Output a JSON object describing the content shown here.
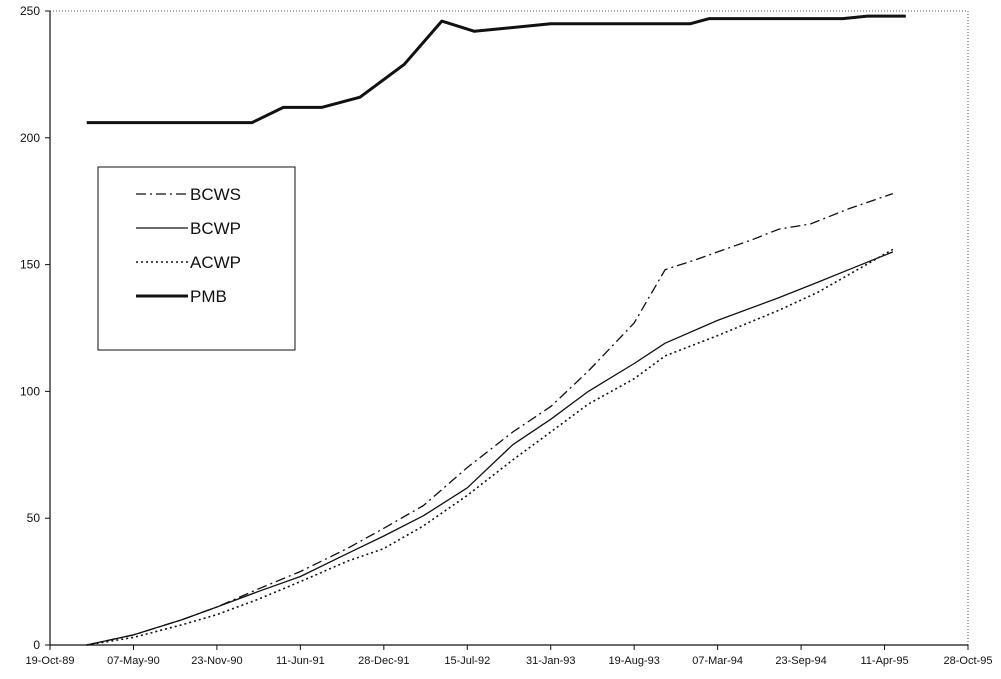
{
  "chart_data": {
    "type": "line",
    "xlabel": "",
    "ylabel": "",
    "x_tick_labels": [
      "19-Oct-89",
      "07-May-90",
      "23-Nov-90",
      "11-Jun-91",
      "28-Dec-91",
      "15-Jul-92",
      "31-Jan-93",
      "19-Aug-93",
      "07-Mar-94",
      "23-Sep-94",
      "11-Apr-95",
      "28-Oct-95"
    ],
    "x_range": [
      "1989-10-19",
      "1995-10-28"
    ],
    "y_ticks": [
      0,
      50,
      100,
      150,
      200,
      250
    ],
    "ylim": [
      0,
      250
    ],
    "grid": false,
    "legend_position": "upper-left",
    "series": [
      {
        "name": "BCWS",
        "style": "dash-dot",
        "points": [
          [
            "1990-01-15",
            0
          ],
          [
            "1990-05-07",
            4
          ],
          [
            "1990-09-01",
            10
          ],
          [
            "1990-11-23",
            15
          ],
          [
            "1991-03-01",
            22
          ],
          [
            "1991-06-11",
            29
          ],
          [
            "1991-10-01",
            38
          ],
          [
            "1991-12-28",
            46
          ],
          [
            "1992-04-01",
            55
          ],
          [
            "1992-07-15",
            70
          ],
          [
            "1992-11-01",
            84
          ],
          [
            "1993-01-31",
            94
          ],
          [
            "1993-05-01",
            108
          ],
          [
            "1993-08-19",
            127
          ],
          [
            "1993-11-01",
            148
          ],
          [
            "1994-01-15",
            152
          ],
          [
            "1994-03-07",
            155
          ],
          [
            "1994-06-01",
            160
          ],
          [
            "1994-08-01",
            164
          ],
          [
            "1994-10-15",
            166
          ],
          [
            "1995-01-15",
            172
          ],
          [
            "1995-05-01",
            178
          ]
        ]
      },
      {
        "name": "BCWP",
        "style": "solid-thin",
        "points": [
          [
            "1990-01-15",
            0
          ],
          [
            "1990-05-07",
            4
          ],
          [
            "1990-09-01",
            10
          ],
          [
            "1990-11-23",
            15
          ],
          [
            "1991-03-01",
            21
          ],
          [
            "1991-06-11",
            27
          ],
          [
            "1991-10-01",
            36
          ],
          [
            "1991-12-28",
            43
          ],
          [
            "1992-04-01",
            51
          ],
          [
            "1992-07-15",
            62
          ],
          [
            "1992-11-01",
            79
          ],
          [
            "1993-01-31",
            89
          ],
          [
            "1993-05-01",
            100
          ],
          [
            "1993-08-19",
            111
          ],
          [
            "1993-11-01",
            119
          ],
          [
            "1994-03-07",
            128
          ],
          [
            "1994-08-01",
            137
          ],
          [
            "1994-11-01",
            143
          ],
          [
            "1995-01-15",
            148
          ],
          [
            "1995-05-01",
            155
          ]
        ]
      },
      {
        "name": "ACWP",
        "style": "dotted",
        "points": [
          [
            "1990-01-15",
            0
          ],
          [
            "1990-05-07",
            3
          ],
          [
            "1990-09-01",
            8
          ],
          [
            "1990-11-23",
            12
          ],
          [
            "1991-03-01",
            18
          ],
          [
            "1991-06-11",
            25
          ],
          [
            "1991-10-01",
            33
          ],
          [
            "1991-12-28",
            38
          ],
          [
            "1992-04-01",
            47
          ],
          [
            "1992-07-15",
            59
          ],
          [
            "1992-11-01",
            73
          ],
          [
            "1993-01-31",
            84
          ],
          [
            "1993-05-01",
            95
          ],
          [
            "1993-08-19",
            105
          ],
          [
            "1993-11-01",
            114
          ],
          [
            "1994-03-07",
            122
          ],
          [
            "1994-08-01",
            132
          ],
          [
            "1994-11-01",
            139
          ],
          [
            "1995-01-15",
            146
          ],
          [
            "1995-05-01",
            156
          ]
        ]
      },
      {
        "name": "PMB",
        "style": "solid-thick",
        "points": [
          [
            "1990-01-15",
            206
          ],
          [
            "1990-05-07",
            206
          ],
          [
            "1990-11-23",
            206
          ],
          [
            "1991-02-15",
            206
          ],
          [
            "1991-05-01",
            212
          ],
          [
            "1991-08-01",
            212
          ],
          [
            "1991-11-01",
            216
          ],
          [
            "1992-02-15",
            229
          ],
          [
            "1992-05-15",
            246
          ],
          [
            "1992-08-01",
            242
          ],
          [
            "1993-01-31",
            245
          ],
          [
            "1993-06-01",
            245
          ],
          [
            "1994-01-01",
            245
          ],
          [
            "1994-02-15",
            247
          ],
          [
            "1994-06-01",
            247
          ],
          [
            "1995-01-01",
            247
          ],
          [
            "1995-03-01",
            248
          ],
          [
            "1995-06-01",
            248
          ]
        ]
      }
    ]
  }
}
